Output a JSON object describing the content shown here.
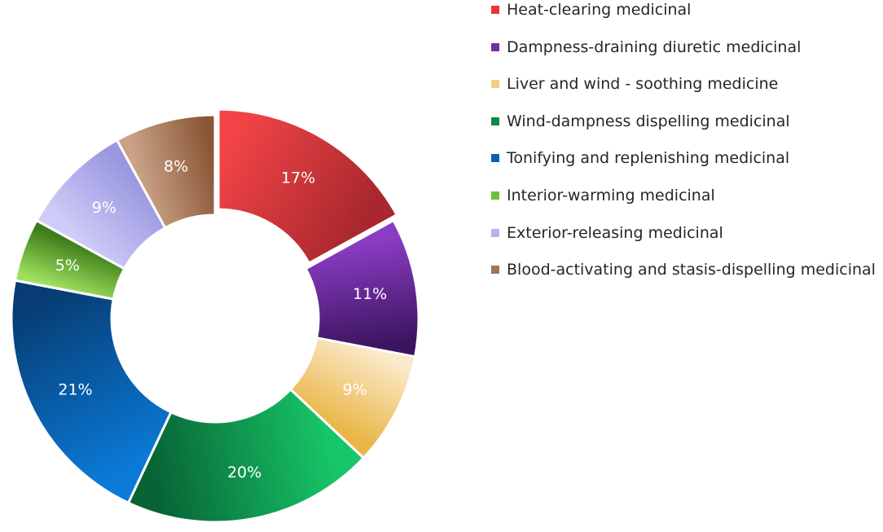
{
  "chart_data": {
    "type": "pie",
    "variant": "donut",
    "title": "",
    "legend_position": "right",
    "categories": [
      "Heat-clearing medicinal",
      "Dampness-draining diuretic medicinal",
      "Liver and wind - soothing medicine",
      "Wind-dampness dispelling medicinal",
      "Tonifying and replenishing medicinal",
      "Interior-warming medicinal",
      "Exterior-releasing medicinal",
      "Blood-activating and stasis-dispelling medicinal"
    ],
    "values": [
      17,
      11,
      9,
      20,
      21,
      5,
      9,
      8
    ],
    "labels": [
      "17%",
      "11%",
      "9%",
      "20%",
      "21%",
      "5%",
      "9%",
      "8%"
    ],
    "unit": "%",
    "colors": [
      "#e8353a",
      "#7030a0",
      "#f2cf7e",
      "#0f8a45",
      "#0a60ad",
      "#6fbf3a",
      "#b5b3ee",
      "#a57358"
    ],
    "gradient_ends": [
      [
        "#f24447",
        "#a8282d"
      ],
      [
        "#8a3cc4",
        "#3c1560"
      ],
      [
        "#fbe9c9",
        "#e9b647"
      ],
      [
        "#17c668",
        "#086335"
      ],
      [
        "#0a7ad6",
        "#073d74"
      ],
      [
        "#9fe05e",
        "#3e7d1a"
      ],
      [
        "#cfcdf8",
        "#9a97e0"
      ],
      [
        "#c9a287",
        "#8a5636"
      ]
    ]
  }
}
